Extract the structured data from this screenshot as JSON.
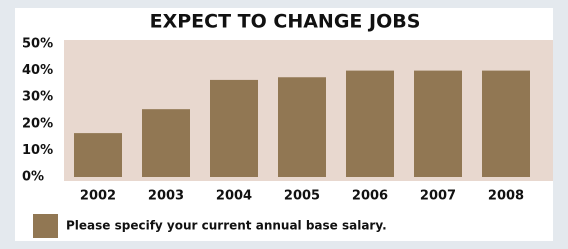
{
  "chart_data": {
    "type": "bar",
    "title": "EXPECT TO CHANGE JOBS",
    "categories": [
      "2002",
      "2003",
      "2004",
      "2005",
      "2006",
      "2007",
      "2008"
    ],
    "series": [
      {
        "name": "Please specify your current annual base salary.",
        "color": "#917753",
        "values": [
          16.5,
          25.5,
          36.5,
          37.5,
          40,
          40,
          40
        ]
      }
    ],
    "ylim": [
      0,
      50
    ],
    "yticks": [
      {
        "value": 0,
        "label": "0%"
      },
      {
        "value": 10,
        "label": "10%"
      },
      {
        "value": 20,
        "label": "20%"
      },
      {
        "value": 30,
        "label": "30%"
      },
      {
        "value": 40,
        "label": "40%"
      },
      {
        "value": 50,
        "label": "50%"
      }
    ],
    "grid": false
  }
}
